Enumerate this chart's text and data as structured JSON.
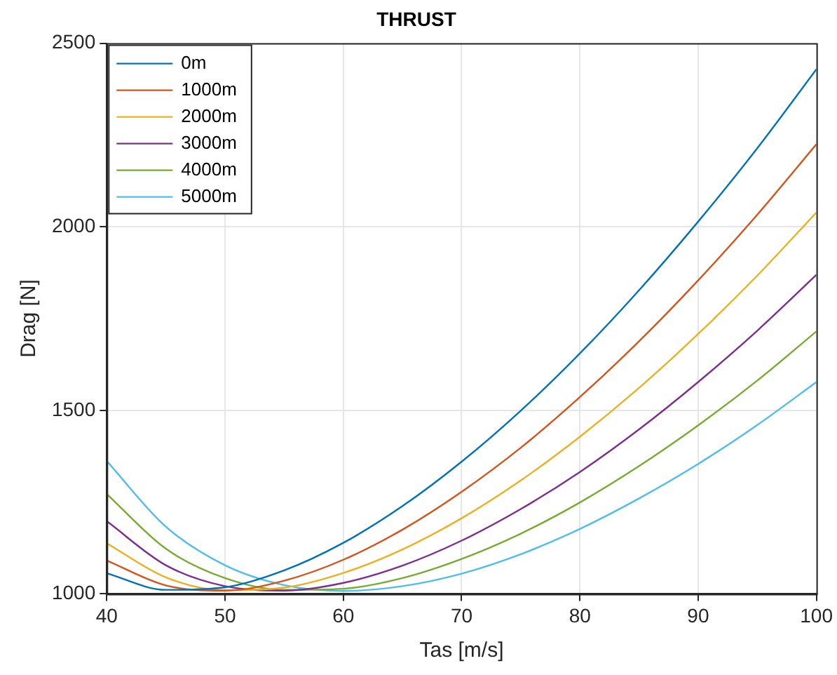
{
  "chart_data": {
    "type": "line",
    "title": "THRUST",
    "xlabel": "Tas [m/s]",
    "ylabel": "Drag [N]",
    "x": [
      40,
      45,
      50,
      55,
      60,
      65,
      70,
      75,
      80,
      85,
      90,
      95,
      100
    ],
    "series": [
      {
        "name": "0m",
        "color": "#0072bd",
        "values": [
          1056,
          1011,
          1018,
          1064,
          1139,
          1239,
          1360,
          1499,
          1655,
          1827,
          2014,
          2214,
          2429
        ]
      },
      {
        "name": "1000m",
        "color": "#d95319",
        "values": [
          1091,
          1023,
          1009,
          1036,
          1093,
          1175,
          1278,
          1398,
          1536,
          1688,
          1854,
          2033,
          2225
        ]
      },
      {
        "name": "2000m",
        "color": "#edb120",
        "values": [
          1138,
          1045,
          1010,
          1017,
          1057,
          1121,
          1206,
          1309,
          1428,
          1561,
          1708,
          1867,
          2039
        ]
      },
      {
        "name": "3000m",
        "color": "#7e2f8e",
        "values": [
          1198,
          1078,
          1021,
          1009,
          1030,
          1077,
          1145,
          1231,
          1332,
          1448,
          1577,
          1717,
          1869
        ]
      },
      {
        "name": "4000m",
        "color": "#77ac30",
        "values": [
          1272,
          1123,
          1043,
          1011,
          1014,
          1043,
          1095,
          1164,
          1249,
          1348,
          1459,
          1581,
          1715
        ]
      },
      {
        "name": "5000m",
        "color": "#4dbeee",
        "values": [
          1362,
          1183,
          1078,
          1024,
          1008,
          1021,
          1055,
          1108,
          1177,
          1260,
          1354,
          1460,
          1577
        ]
      }
    ],
    "xlim": [
      40,
      100
    ],
    "xticks": [
      40,
      50,
      60,
      70,
      80,
      90,
      100
    ],
    "ylim": [
      1000,
      2500
    ],
    "yticks": [
      1000,
      1500,
      2000,
      2500
    ],
    "grid": true,
    "legend": "top left",
    "marker": "none",
    "line_style": "solid"
  }
}
